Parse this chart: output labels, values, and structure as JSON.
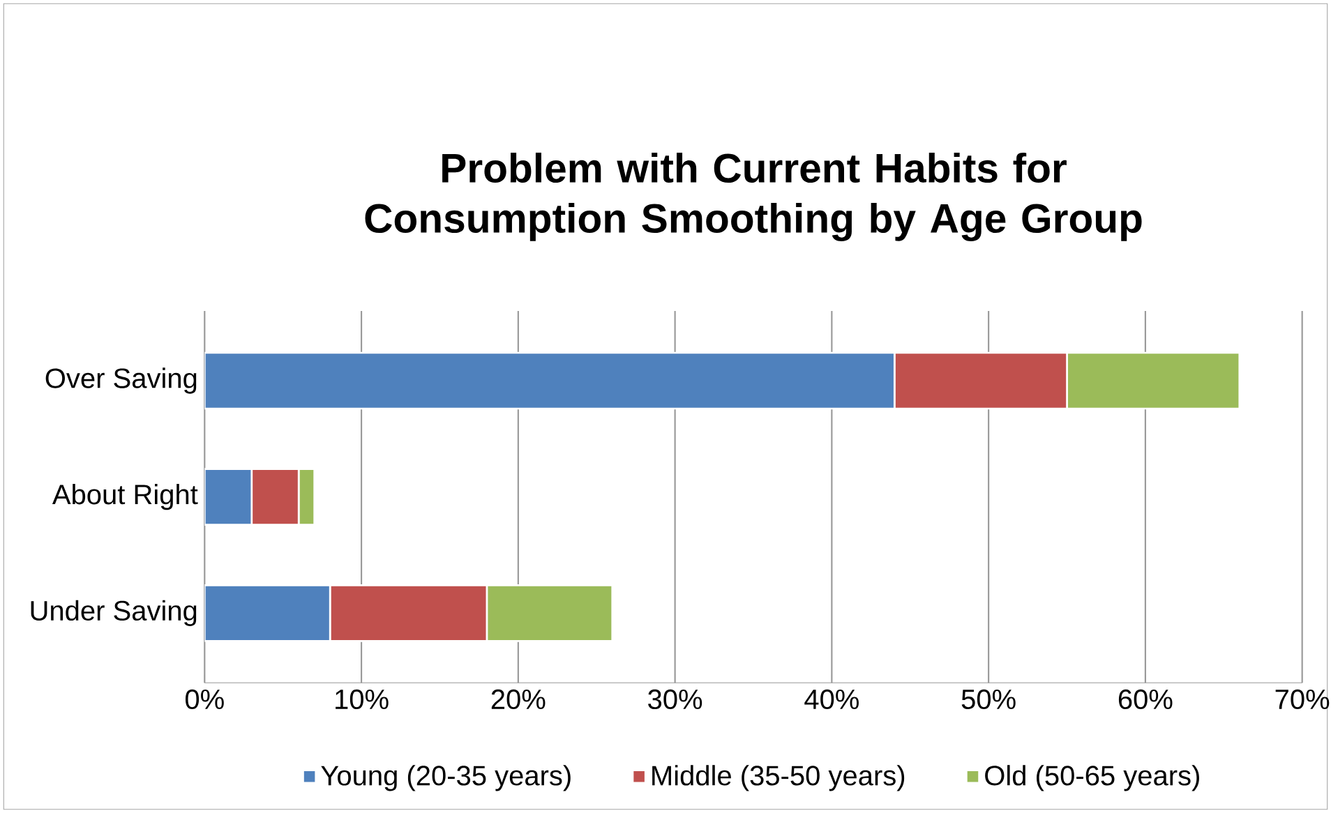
{
  "chart_data": {
    "type": "bar",
    "orientation": "horizontal",
    "stacked": true,
    "title": "Problem with Current Habits for Consumption Smoothing by Age Group",
    "categories": [
      "Over Saving",
      "About Right",
      "Under Saving"
    ],
    "series": [
      {
        "name": "Young (20-35 years)",
        "color": "#4f81bd",
        "values": [
          44,
          3,
          8
        ]
      },
      {
        "name": "Middle (35-50 years)",
        "color": "#c0504d",
        "values": [
          11,
          3,
          10
        ]
      },
      {
        "name": "Old (50-65 years)",
        "color": "#9bbb59",
        "values": [
          11,
          1,
          8
        ]
      }
    ],
    "xlim": [
      0,
      70
    ],
    "xticks": [
      {
        "value": 0,
        "label": "0%"
      },
      {
        "value": 10,
        "label": "10%"
      },
      {
        "value": 20,
        "label": "20%"
      },
      {
        "value": 30,
        "label": "30%"
      },
      {
        "value": 40,
        "label": "40%"
      },
      {
        "value": 50,
        "label": "50%"
      },
      {
        "value": 60,
        "label": "60%"
      },
      {
        "value": 70,
        "label": "70%"
      }
    ],
    "grid": "x",
    "legend": "bottom"
  }
}
